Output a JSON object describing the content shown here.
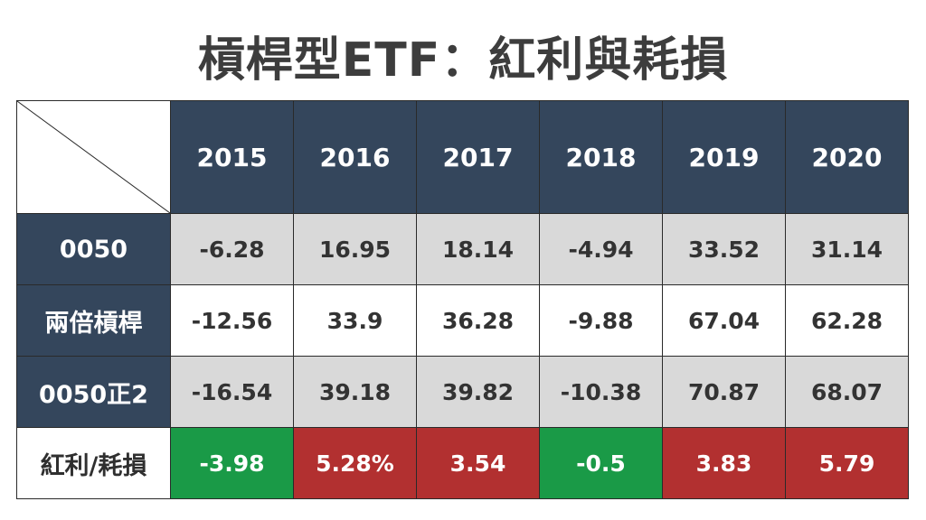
{
  "title": "槓桿型ETF：紅利與耗損",
  "years": [
    "2015",
    "2016",
    "2017",
    "2018",
    "2019",
    "2020"
  ],
  "rows": [
    {
      "label": "0050",
      "values": [
        "-6.28",
        "16.95",
        "18.14",
        "-4.94",
        "33.52",
        "31.14"
      ]
    },
    {
      "label": "兩倍槓桿",
      "values": [
        "-12.56",
        "33.9",
        "36.28",
        "-9.88",
        "67.04",
        "62.28"
      ]
    },
    {
      "label": "0050正2",
      "values": [
        "-16.54",
        "39.18",
        "39.82",
        "-10.38",
        "70.87",
        "68.07"
      ]
    },
    {
      "label": "紅利/耗損",
      "values": [
        "-3.98",
        "5.28%",
        "3.54",
        "-0.5",
        "3.83",
        "5.79"
      ]
    }
  ],
  "colors": {
    "header_navy": "#34465c",
    "gray_row": "#d9d9d9",
    "gain_red": "#b23030",
    "loss_green": "#1a9a47"
  }
}
